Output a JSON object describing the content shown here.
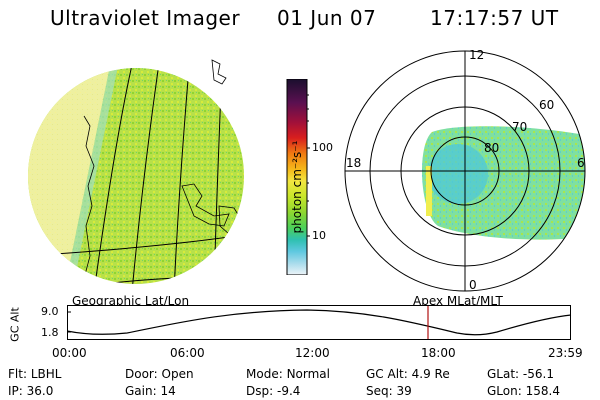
{
  "header": {
    "instrument": "Ultraviolet Imager",
    "date": "01 Jun 07",
    "time": "17:17:57 UT"
  },
  "geo_panel": {
    "label": "Geographic Lat/Lon"
  },
  "polar_panel": {
    "label": "Apex  MLat/MLT",
    "mlt_labels": {
      "top": "12",
      "left": "18",
      "right": "6",
      "bottom": "0"
    },
    "mlat_labels": [
      "60",
      "70",
      "80"
    ]
  },
  "colorbar": {
    "unit_label": "photon cm⁻²s⁻¹",
    "scale": "log",
    "ticks": [
      "100",
      "10"
    ],
    "colors": [
      "#1a0f2e",
      "#5a1050",
      "#a0103a",
      "#d81e1e",
      "#f07a12",
      "#f5b81a",
      "#f3e640",
      "#c8e62a",
      "#8fd630",
      "#4bd05a",
      "#2fc0b0",
      "#5fc8e0",
      "#a8dcec",
      "#dcecf4"
    ]
  },
  "altitude_plot": {
    "ylabel": "GC Alt",
    "yticks": [
      "9.0",
      "1.8"
    ],
    "xticks": [
      "00:00",
      "06:00",
      "12:00",
      "18:00",
      "23:59"
    ],
    "current_time_marker": "17:17:57"
  },
  "status": {
    "row1": [
      {
        "k": "Flt:",
        "v": "LBHL"
      },
      {
        "k": "Door:",
        "v": "Open"
      },
      {
        "k": "Mode:",
        "v": "Normal"
      },
      {
        "k": "GC Alt:",
        "v": "4.9 Re"
      },
      {
        "k": "GLat:",
        "v": "-56.1"
      }
    ],
    "row2": [
      {
        "k": "IP:",
        "v": "36.0"
      },
      {
        "k": "Gain:",
        "v": "14"
      },
      {
        "k": "Dsp:",
        "v": "-9.4"
      },
      {
        "k": "Seq:",
        "v": "39"
      },
      {
        "k": "GLon:",
        "v": "158.4"
      }
    ]
  }
}
